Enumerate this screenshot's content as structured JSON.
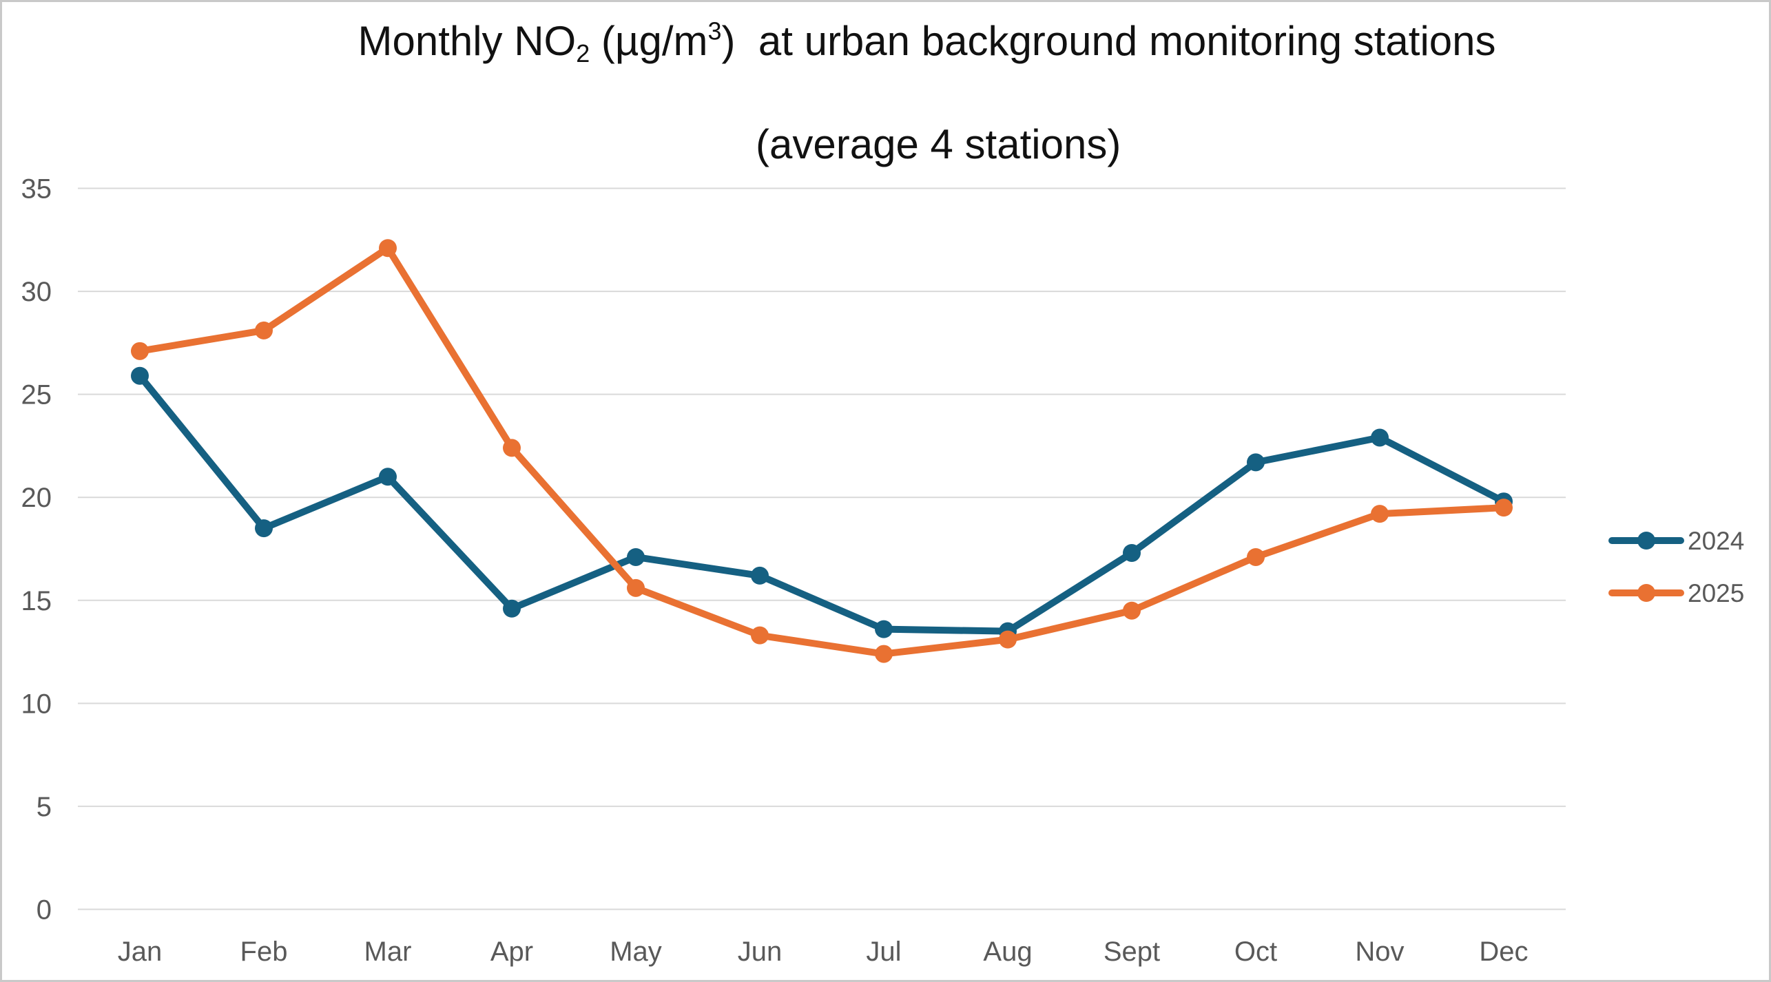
{
  "window": {
    "background": "#ffffff",
    "border_color": "#c9c9c9"
  },
  "title": {
    "line1_prefix": "Monthly NO",
    "line1_subscript": "2",
    "line1_middle": " (µg/m",
    "line1_superscript": "3",
    "line1_suffix": ")  at urban background monitoring stations",
    "line2": "(average 4 stations)"
  },
  "legend": {
    "position": "right",
    "items": [
      {
        "label": "2024",
        "color": "#156082"
      },
      {
        "label": "2025",
        "color": "#E97132"
      }
    ]
  },
  "chart_data": {
    "type": "line",
    "title": "Monthly NO2 (µg/m3) at urban background monitoring stations (average 4 stations)",
    "categories": [
      "Jan",
      "Feb",
      "Mar",
      "Apr",
      "May",
      "Jun",
      "Jul",
      "Aug",
      "Sept",
      "Oct",
      "Nov",
      "Dec"
    ],
    "series": [
      {
        "name": "2024",
        "color": "#156082",
        "values": [
          25.9,
          18.5,
          21.0,
          14.6,
          17.1,
          16.2,
          13.6,
          13.5,
          17.3,
          21.7,
          22.9,
          19.8
        ]
      },
      {
        "name": "2025",
        "color": "#E97132",
        "values": [
          27.1,
          28.1,
          32.1,
          22.4,
          15.6,
          13.3,
          12.4,
          13.1,
          14.5,
          17.1,
          19.2,
          19.5
        ]
      }
    ],
    "xlabel": "",
    "ylabel": "",
    "ylim": [
      0,
      35
    ],
    "yticks": [
      0,
      5,
      10,
      15,
      20,
      25,
      30,
      35
    ],
    "grid": "horizontal",
    "gridline_color": "#D9D9D9",
    "axis_label_color": "#595959",
    "marker": "circle",
    "legend_position": "right"
  }
}
